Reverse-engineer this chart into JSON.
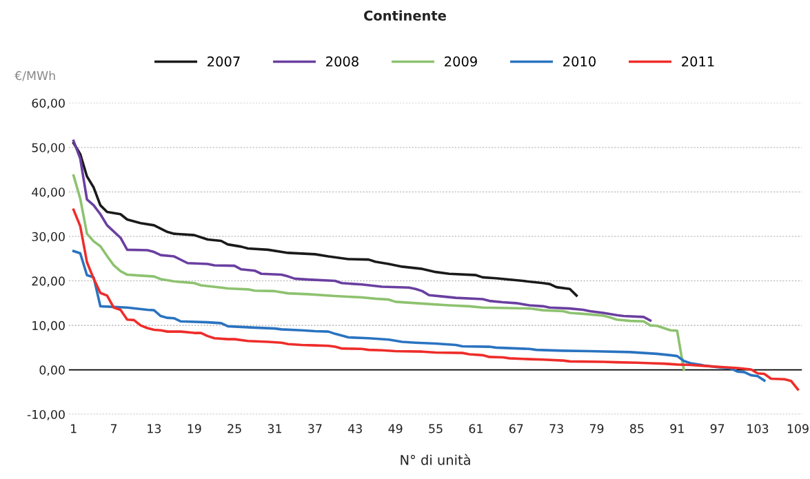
{
  "chart_data": {
    "type": "line",
    "title": "Continente",
    "xlabel": "N° di unità",
    "ylabel": "€/MWh",
    "xlim": [
      0.3,
      109.6
    ],
    "xticks": [
      1,
      7,
      13,
      19,
      25,
      31,
      37,
      43,
      49,
      55,
      61,
      67,
      73,
      79,
      85,
      91,
      97,
      103,
      109
    ],
    "ylim": [
      -10,
      60
    ],
    "yticks": [
      {
        "value": -10,
        "label": "-10,00"
      },
      {
        "value": 0,
        "label": "0,00"
      },
      {
        "value": 10,
        "label": "10,00"
      },
      {
        "value": 20,
        "label": "20,00"
      },
      {
        "value": 30,
        "label": "30,00"
      },
      {
        "value": 40,
        "label": "40,00"
      },
      {
        "value": 50,
        "label": "50,00"
      },
      {
        "value": 60,
        "label": "60,00"
      }
    ],
    "grid": "y",
    "legend": "top",
    "marker": "none",
    "line_style": "solid",
    "ref_lines": [
      {
        "axis": "y",
        "value": 0,
        "label": null,
        "color": "#000000"
      }
    ],
    "series": [
      {
        "name": "2007",
        "color": "#1a1a1a",
        "x": [
          1,
          2,
          3,
          4,
          5,
          6,
          8,
          9,
          11,
          13,
          15,
          16,
          19,
          21,
          23,
          24,
          26,
          27,
          30,
          33,
          37,
          39,
          42,
          45,
          46,
          48,
          50,
          53,
          55,
          57,
          61,
          62,
          64,
          68,
          71,
          72,
          73,
          75,
          76
        ],
        "values": [
          51,
          48.5,
          43.5,
          41,
          37,
          35.5,
          35,
          33.8,
          33,
          32.5,
          31,
          30.6,
          30.3,
          29.3,
          29,
          28.2,
          27.7,
          27.3,
          27,
          26.3,
          26,
          25.5,
          24.9,
          24.8,
          24.3,
          23.8,
          23.2,
          22.7,
          22,
          21.6,
          21.3,
          20.8,
          20.6,
          20,
          19.5,
          19.3,
          18.6,
          18.2,
          16.7
        ]
      },
      {
        "name": "2008",
        "color": "#6a3fa0",
        "x": [
          1,
          2,
          3,
          4,
          5,
          6,
          8,
          9,
          12,
          13,
          14,
          16,
          18,
          21,
          22,
          25,
          26,
          28,
          29,
          32,
          33,
          34,
          36,
          40,
          41,
          44,
          47,
          51,
          52,
          53,
          54,
          56,
          58,
          62,
          63,
          65,
          67,
          69,
          71,
          72,
          75,
          77,
          78,
          80,
          82,
          83,
          86,
          87
        ],
        "values": [
          51.5,
          47.5,
          38.3,
          37,
          35,
          32.5,
          29.7,
          27,
          26.9,
          26.5,
          25.8,
          25.5,
          24,
          23.8,
          23.5,
          23.4,
          22.6,
          22.3,
          21.6,
          21.4,
          21,
          20.5,
          20.3,
          20,
          19.5,
          19.2,
          18.7,
          18.5,
          18.2,
          17.7,
          16.8,
          16.5,
          16.2,
          15.9,
          15.5,
          15.2,
          15,
          14.5,
          14.3,
          14,
          13.8,
          13.5,
          13.2,
          12.8,
          12.3,
          12.1,
          11.9,
          11.1
        ]
      },
      {
        "name": "2009",
        "color": "#8dc26f",
        "x": [
          1,
          2,
          3,
          4,
          5,
          6,
          7,
          8,
          9,
          11,
          13,
          14,
          16,
          19,
          20,
          23,
          24,
          27,
          28,
          31,
          33,
          36,
          40,
          44,
          46,
          48,
          49,
          54,
          57,
          60,
          62,
          66,
          69,
          71,
          74,
          75,
          77,
          80,
          81,
          82,
          84,
          86,
          87,
          88,
          90,
          91,
          92
        ],
        "values": [
          43.7,
          38.5,
          30.6,
          28.9,
          27.8,
          25.6,
          23.5,
          22.2,
          21.4,
          21.2,
          21,
          20.4,
          19.9,
          19.5,
          19,
          18.5,
          18.3,
          18.1,
          17.8,
          17.7,
          17.2,
          17,
          16.6,
          16.3,
          16,
          15.8,
          15.3,
          14.8,
          14.5,
          14.3,
          14,
          13.9,
          13.8,
          13.4,
          13.2,
          12.8,
          12.6,
          12.2,
          11.8,
          11.3,
          11,
          10.9,
          10,
          9.9,
          8.9,
          8.8,
          0
        ]
      },
      {
        "name": "2010",
        "color": "#2a73c0",
        "x": [
          1,
          2,
          3,
          4,
          5,
          9,
          12,
          13,
          14,
          15,
          16,
          17,
          21,
          23,
          24,
          28,
          31,
          32,
          35,
          37,
          39,
          40,
          42,
          45,
          48,
          50,
          52,
          55,
          58,
          59,
          63,
          64,
          69,
          70,
          74,
          78,
          84,
          86,
          88,
          90,
          91,
          92,
          93,
          95,
          97,
          99,
          100,
          101,
          102,
          103,
          104
        ],
        "values": [
          26.7,
          26.2,
          21.3,
          20.8,
          14.3,
          14,
          13.5,
          13.4,
          12.1,
          11.7,
          11.6,
          10.9,
          10.7,
          10.5,
          9.8,
          9.5,
          9.3,
          9.1,
          8.9,
          8.7,
          8.6,
          8.1,
          7.3,
          7.1,
          6.8,
          6.3,
          6.1,
          5.9,
          5.6,
          5.3,
          5.2,
          5,
          4.7,
          4.5,
          4.3,
          4.2,
          4,
          3.8,
          3.6,
          3.3,
          3.1,
          2,
          1.5,
          1,
          0.6,
          0.3,
          -0.4,
          -0.5,
          -1.2,
          -1.4,
          -2.4
        ]
      },
      {
        "name": "2011",
        "color": "#ee2d2a",
        "x": [
          1,
          2,
          3,
          4,
          5,
          6,
          7,
          8,
          9,
          10,
          11,
          12,
          13,
          14,
          15,
          17,
          19,
          20,
          21,
          22,
          24,
          25,
          27,
          30,
          32,
          33,
          35,
          37,
          39,
          40,
          41,
          44,
          45,
          47,
          49,
          53,
          55,
          59,
          60,
          62,
          63,
          65,
          66,
          69,
          71,
          74,
          75,
          80,
          82,
          85,
          87,
          89,
          91,
          93,
          95,
          98,
          100,
          102,
          103,
          104,
          105,
          107,
          108,
          109
        ],
        "values": [
          36,
          32.3,
          24.2,
          20.5,
          17.3,
          16.7,
          14,
          13.5,
          11.3,
          11.2,
          10,
          9.4,
          9,
          8.9,
          8.6,
          8.6,
          8.3,
          8.3,
          7.6,
          7.1,
          6.9,
          6.9,
          6.5,
          6.3,
          6.1,
          5.8,
          5.6,
          5.5,
          5.4,
          5.2,
          4.8,
          4.7,
          4.5,
          4.4,
          4.2,
          4.1,
          3.9,
          3.8,
          3.5,
          3.3,
          2.9,
          2.8,
          2.6,
          2.4,
          2.3,
          2.1,
          1.9,
          1.8,
          1.7,
          1.6,
          1.5,
          1.4,
          1.2,
          1.1,
          0.9,
          0.6,
          0.4,
          0.1,
          -0.8,
          -0.9,
          -2,
          -2.1,
          -2.5,
          -4.4
        ]
      }
    ]
  }
}
